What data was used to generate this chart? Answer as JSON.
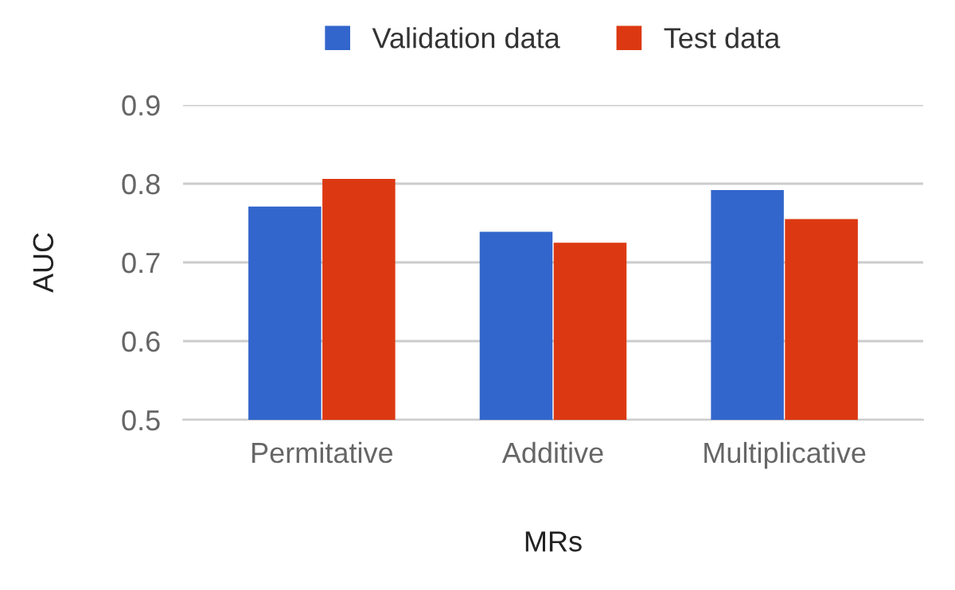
{
  "chart_data": {
    "type": "bar",
    "xlabel": "MRs",
    "ylabel": "AUC",
    "categories": [
      "Permitative",
      "Additive",
      "Multiplicative"
    ],
    "series": [
      {
        "name": "Validation data",
        "color": "#3366cc",
        "values": [
          0.771,
          0.739,
          0.792
        ]
      },
      {
        "name": "Test data",
        "color": "#dc3912",
        "values": [
          0.806,
          0.725,
          0.755
        ]
      }
    ],
    "ylim": [
      0.5,
      0.9
    ],
    "yticks": [
      0.5,
      0.6,
      0.7,
      0.8,
      0.9
    ],
    "grid": "y",
    "legend": "top"
  }
}
